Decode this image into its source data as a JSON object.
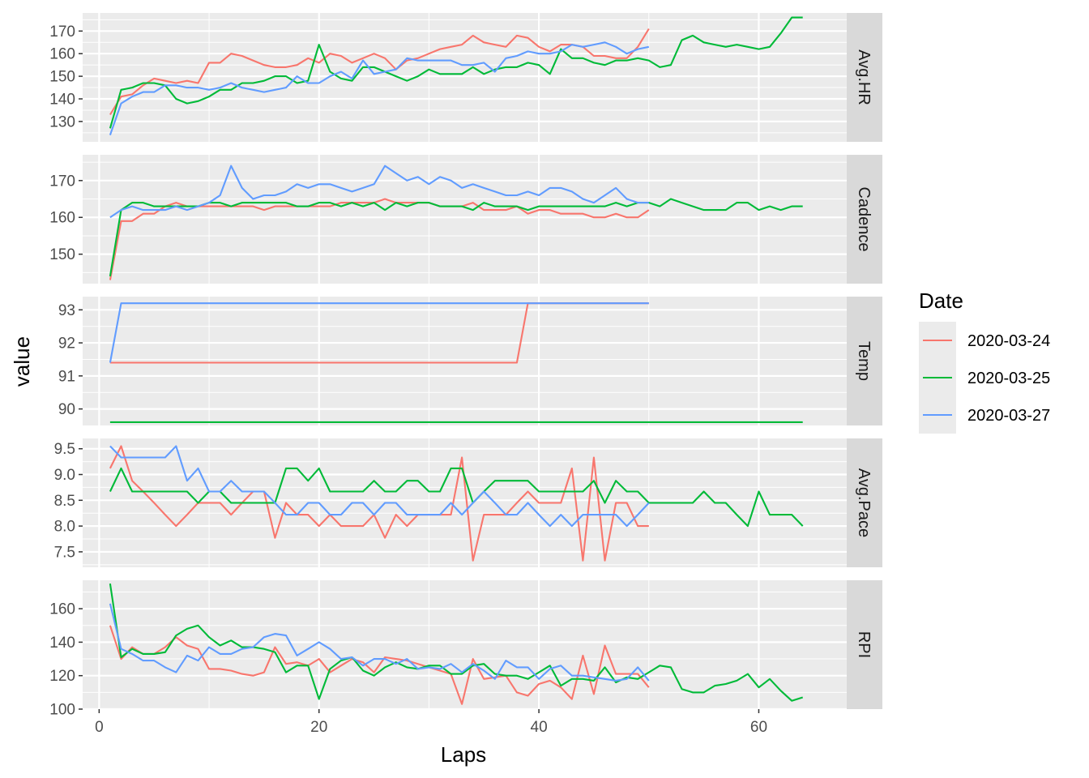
{
  "chart_data": {
    "type": "line",
    "xlabel": "Laps",
    "ylabel": "value",
    "xlim": [
      -1.5,
      68
    ],
    "x_ticks": [
      0,
      20,
      40,
      60
    ],
    "legend": {
      "title": "Date",
      "position": "right"
    },
    "series_colors": {
      "2020-03-24": "#F8766D",
      "2020-03-25": "#00BA38",
      "2020-03-27": "#619CFF"
    },
    "style": {
      "panel_bg": "#EBEBEB",
      "grid_color": "#FFFFFF",
      "strip_bg": "#D9D9D9"
    },
    "panels": [
      {
        "label": "Avg.HR",
        "ylim": [
          121,
          178
        ],
        "y_ticks": [
          130,
          140,
          150,
          160,
          170
        ],
        "series": [
          {
            "name": "2020-03-24",
            "values": [
              133,
              141,
              142,
              146,
              149,
              148,
              147,
              148,
              147,
              156,
              156,
              160,
              159,
              157,
              155,
              154,
              154,
              155,
              158,
              156,
              160,
              159,
              156,
              158,
              160,
              158,
              153,
              157,
              158,
              160,
              162,
              163,
              164,
              168,
              165,
              164,
              163,
              168,
              167,
              163,
              161,
              164,
              164,
              163,
              159,
              159,
              158,
              158,
              163,
              171
            ]
          },
          {
            "name": "2020-03-25",
            "values": [
              127,
              144,
              145,
              147,
              147,
              146,
              140,
              138,
              139,
              141,
              144,
              144,
              147,
              147,
              148,
              150,
              150,
              147,
              148,
              164,
              152,
              149,
              148,
              154,
              154,
              152,
              150,
              148,
              150,
              153,
              151,
              151,
              151,
              154,
              151,
              153,
              154,
              154,
              156,
              155,
              151,
              162,
              158,
              158,
              156,
              155,
              157,
              157,
              158,
              157,
              154,
              155,
              166,
              168,
              165,
              164,
              163,
              164,
              163,
              162,
              163,
              169,
              176,
              176
            ]
          },
          {
            "name": "2020-03-27",
            "values": [
              124,
              138,
              141,
              143,
              143,
              146,
              146,
              145,
              145,
              144,
              145,
              147,
              145,
              144,
              143,
              144,
              145,
              150,
              147,
              147,
              150,
              152,
              149,
              157,
              151,
              152,
              153,
              158,
              157,
              157,
              157,
              157,
              155,
              155,
              156,
              152,
              158,
              159,
              161,
              160,
              160,
              161,
              164,
              163,
              164,
              165,
              163,
              160,
              162,
              163
            ]
          }
        ]
      },
      {
        "label": "Cadence",
        "ylim": [
          142,
          177
        ],
        "y_ticks": [
          150,
          160,
          170
        ],
        "series": [
          {
            "name": "2020-03-24",
            "values": [
              143,
              159,
              159,
              161,
              161,
              163,
              164,
              163,
              163,
              163,
              163,
              163,
              163,
              163,
              162,
              163,
              163,
              163,
              163,
              163,
              163,
              164,
              164,
              164,
              164,
              165,
              164,
              164,
              164,
              164,
              163,
              163,
              163,
              164,
              162,
              162,
              162,
              163,
              161,
              162,
              162,
              161,
              161,
              161,
              160,
              160,
              161,
              160,
              160,
              162
            ]
          },
          {
            "name": "2020-03-25",
            "values": [
              144,
              162,
              164,
              164,
              163,
              163,
              163,
              163,
              163,
              164,
              164,
              163,
              164,
              164,
              164,
              164,
              164,
              163,
              163,
              164,
              164,
              163,
              164,
              163,
              164,
              162,
              164,
              163,
              164,
              164,
              163,
              163,
              163,
              162,
              164,
              163,
              163,
              163,
              162,
              163,
              163,
              163,
              163,
              163,
              163,
              163,
              164,
              163,
              164,
              164,
              163,
              165,
              164,
              163,
              162,
              162,
              162,
              164,
              164,
              162,
              163,
              162,
              163,
              163
            ]
          },
          {
            "name": "2020-03-27",
            "values": [
              160,
              162,
              163,
              162,
              162,
              162,
              163,
              162,
              163,
              164,
              166,
              174,
              168,
              165,
              166,
              166,
              167,
              169,
              168,
              169,
              169,
              168,
              167,
              168,
              169,
              174,
              172,
              170,
              171,
              169,
              171,
              170,
              168,
              169,
              168,
              167,
              166,
              166,
              167,
              166,
              168,
              168,
              167,
              165,
              164,
              166,
              168,
              165,
              164,
              164
            ]
          }
        ]
      },
      {
        "label": "Temp",
        "ylim": [
          89.5,
          93.4
        ],
        "y_ticks": [
          90,
          91,
          92,
          93
        ],
        "series": [
          {
            "name": "2020-03-24",
            "values": [
              91.4,
              91.4,
              91.4,
              91.4,
              91.4,
              91.4,
              91.4,
              91.4,
              91.4,
              91.4,
              91.4,
              91.4,
              91.4,
              91.4,
              91.4,
              91.4,
              91.4,
              91.4,
              91.4,
              91.4,
              91.4,
              91.4,
              91.4,
              91.4,
              91.4,
              91.4,
              91.4,
              91.4,
              91.4,
              91.4,
              91.4,
              91.4,
              91.4,
              91.4,
              91.4,
              91.4,
              91.4,
              91.4,
              93.2,
              93.2,
              93.2,
              93.2,
              93.2,
              93.2,
              93.2,
              93.2,
              93.2,
              93.2,
              93.2,
              93.2
            ]
          },
          {
            "name": "2020-03-25",
            "values": [
              89.6,
              89.6,
              89.6,
              89.6,
              89.6,
              89.6,
              89.6,
              89.6,
              89.6,
              89.6,
              89.6,
              89.6,
              89.6,
              89.6,
              89.6,
              89.6,
              89.6,
              89.6,
              89.6,
              89.6,
              89.6,
              89.6,
              89.6,
              89.6,
              89.6,
              89.6,
              89.6,
              89.6,
              89.6,
              89.6,
              89.6,
              89.6,
              89.6,
              89.6,
              89.6,
              89.6,
              89.6,
              89.6,
              89.6,
              89.6,
              89.6,
              89.6,
              89.6,
              89.6,
              89.6,
              89.6,
              89.6,
              89.6,
              89.6,
              89.6,
              89.6,
              89.6,
              89.6,
              89.6,
              89.6,
              89.6,
              89.6,
              89.6,
              89.6,
              89.6,
              89.6,
              89.6,
              89.6,
              89.6
            ]
          },
          {
            "name": "2020-03-27",
            "values": [
              91.4,
              93.2,
              93.2,
              93.2,
              93.2,
              93.2,
              93.2,
              93.2,
              93.2,
              93.2,
              93.2,
              93.2,
              93.2,
              93.2,
              93.2,
              93.2,
              93.2,
              93.2,
              93.2,
              93.2,
              93.2,
              93.2,
              93.2,
              93.2,
              93.2,
              93.2,
              93.2,
              93.2,
              93.2,
              93.2,
              93.2,
              93.2,
              93.2,
              93.2,
              93.2,
              93.2,
              93.2,
              93.2,
              93.2,
              93.2,
              93.2,
              93.2,
              93.2,
              93.2,
              93.2,
              93.2,
              93.2,
              93.2,
              93.2,
              93.2
            ]
          }
        ]
      },
      {
        "label": "Avg.Pace",
        "ylim": [
          7.2,
          9.7
        ],
        "y_ticks": [
          7.5,
          8.0,
          8.5,
          9.0,
          9.5
        ],
        "y_tick_labels": [
          "7.5",
          "8.0",
          "8.5",
          "9.0",
          "9.5"
        ],
        "series": [
          {
            "name": "2020-03-24",
            "values": [
              9.12,
              9.55,
              8.88,
              8.67,
              8.45,
              8.22,
              8.0,
              8.22,
              8.45,
              8.45,
              8.45,
              8.22,
              8.45,
              8.67,
              8.67,
              7.77,
              8.45,
              8.22,
              8.22,
              8.0,
              8.22,
              8.0,
              8.0,
              8.0,
              8.22,
              7.77,
              8.22,
              8.0,
              8.22,
              8.22,
              8.22,
              8.22,
              9.33,
              7.33,
              8.22,
              8.22,
              8.22,
              8.45,
              8.67,
              8.45,
              8.45,
              8.45,
              9.12,
              7.33,
              9.33,
              7.33,
              8.45,
              8.45,
              8.0,
              8.0
            ]
          },
          {
            "name": "2020-03-25",
            "values": [
              8.67,
              9.12,
              8.67,
              8.67,
              8.67,
              8.67,
              8.67,
              8.67,
              8.45,
              8.67,
              8.67,
              8.45,
              8.45,
              8.45,
              8.45,
              8.45,
              9.12,
              9.12,
              8.88,
              9.12,
              8.67,
              8.67,
              8.67,
              8.67,
              8.88,
              8.67,
              8.67,
              8.88,
              8.88,
              8.67,
              8.67,
              9.12,
              9.12,
              8.45,
              8.67,
              8.88,
              8.88,
              8.88,
              8.88,
              8.67,
              8.67,
              8.67,
              8.67,
              8.67,
              8.88,
              8.45,
              8.88,
              8.67,
              8.67,
              8.45,
              8.45,
              8.45,
              8.45,
              8.45,
              8.67,
              8.45,
              8.45,
              8.22,
              8.0,
              8.67,
              8.22,
              8.22,
              8.22,
              8.0
            ]
          },
          {
            "name": "2020-03-27",
            "values": [
              9.55,
              9.33,
              9.33,
              9.33,
              9.33,
              9.33,
              9.55,
              8.88,
              9.12,
              8.67,
              8.67,
              8.88,
              8.67,
              8.67,
              8.67,
              8.45,
              8.22,
              8.22,
              8.45,
              8.45,
              8.22,
              8.22,
              8.45,
              8.45,
              8.22,
              8.45,
              8.45,
              8.22,
              8.22,
              8.22,
              8.22,
              8.45,
              8.22,
              8.45,
              8.67,
              8.45,
              8.22,
              8.22,
              8.45,
              8.22,
              8.0,
              8.22,
              8.0,
              8.22,
              8.22,
              8.22,
              8.22,
              8.0,
              8.22,
              8.45
            ]
          }
        ]
      },
      {
        "label": "RPI",
        "ylim": [
          100,
          177
        ],
        "y_ticks": [
          100,
          120,
          140,
          160
        ],
        "series": [
          {
            "name": "2020-03-24",
            "values": [
              150,
              130,
              137,
              133,
              133,
              137,
              143,
              138,
              136,
              124,
              124,
              123,
              121,
              120,
              122,
              137,
              127,
              128,
              126,
              130,
              122,
              126,
              130,
              128,
              122,
              131,
              130,
              129,
              127,
              125,
              123,
              121,
              103,
              130,
              118,
              119,
              120,
              110,
              108,
              115,
              117,
              113,
              106,
              132,
              109,
              138,
              121,
              121,
              121,
              113
            ]
          },
          {
            "name": "2020-03-25",
            "values": [
              175,
              131,
              136,
              133,
              133,
              134,
              144,
              148,
              150,
              143,
              138,
              141,
              137,
              137,
              136,
              134,
              122,
              126,
              126,
              106,
              124,
              129,
              131,
              123,
              120,
              125,
              128,
              125,
              124,
              126,
              126,
              121,
              121,
              126,
              127,
              121,
              120,
              120,
              118,
              122,
              126,
              114,
              118,
              118,
              117,
              125,
              116,
              119,
              118,
              122,
              126,
              125,
              112,
              110,
              110,
              114,
              115,
              117,
              121,
              113,
              118,
              111,
              105,
              107
            ]
          },
          {
            "name": "2020-03-27",
            "values": [
              163,
              136,
              133,
              129,
              129,
              125,
              122,
              132,
              129,
              137,
              133,
              133,
              136,
              137,
              143,
              145,
              144,
              132,
              136,
              140,
              136,
              130,
              131,
              126,
              130,
              130,
              127,
              130,
              124,
              125,
              124,
              127,
              122,
              127,
              123,
              118,
              129,
              125,
              125,
              118,
              124,
              126,
              120,
              120,
              119,
              118,
              117,
              118,
              125,
              117
            ]
          }
        ]
      }
    ]
  }
}
